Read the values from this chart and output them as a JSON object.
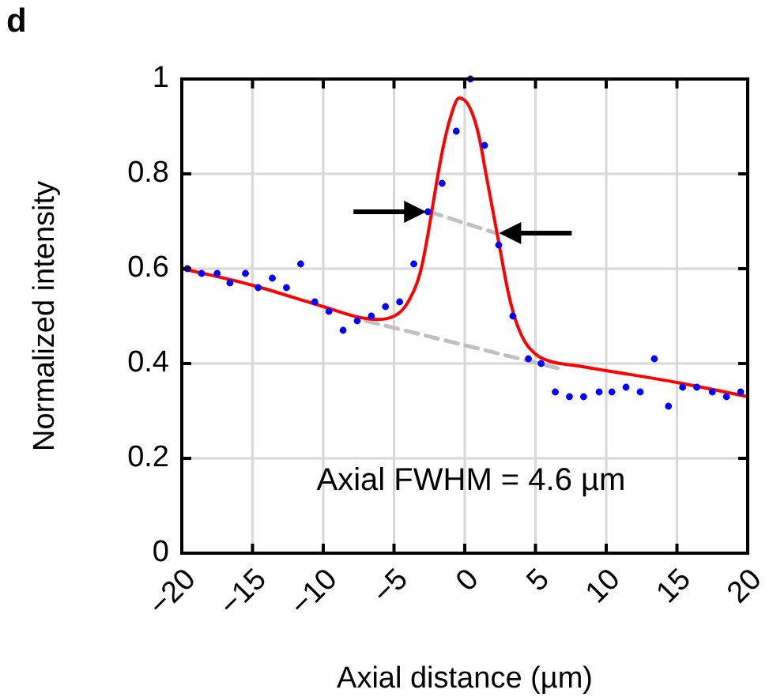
{
  "chart_data": {
    "type": "scatter",
    "title": "d",
    "xlabel": "Axial distance (µm)",
    "ylabel": "Normalized intensity",
    "xlim": [
      -20,
      20
    ],
    "ylim": [
      0,
      1
    ],
    "xticks": [
      {
        "value": -20,
        "label": "−20"
      },
      {
        "value": -15,
        "label": "−15"
      },
      {
        "value": -10,
        "label": "−10"
      },
      {
        "value": -5,
        "label": "−5"
      },
      0,
      5,
      10,
      15,
      20
    ],
    "yticks": [
      0,
      0.2,
      0.4,
      0.6,
      0.8,
      1
    ],
    "grid": true,
    "marker": "circle",
    "annotations": [
      "Axial FWHM = 4.6 µm"
    ],
    "series": [
      {
        "color": "#0000ff",
        "x": [
          -19.6,
          -18.6,
          -17.5,
          -16.6,
          -15.5,
          -14.6,
          -13.6,
          -12.6,
          -11.6,
          -10.6,
          -9.6,
          -8.6,
          -7.6,
          -6.6,
          -5.6,
          -4.6,
          -3.6,
          -2.6,
          -1.6,
          -0.6,
          0.4,
          1.4,
          2.4,
          3.4,
          4.5,
          5.4,
          6.4,
          7.4,
          8.4,
          9.5,
          10.4,
          11.4,
          12.4,
          13.4,
          14.4,
          15.4,
          16.4,
          17.5,
          18.5,
          19.5
        ],
        "values": [
          0.6,
          0.59,
          0.59,
          0.57,
          0.59,
          0.56,
          0.58,
          0.56,
          0.61,
          0.53,
          0.51,
          0.47,
          0.49,
          0.5,
          0.52,
          0.53,
          0.61,
          0.72,
          0.78,
          0.89,
          1.0,
          0.86,
          0.65,
          0.5,
          0.41,
          0.4,
          0.34,
          0.33,
          0.33,
          0.34,
          0.34,
          0.35,
          0.34,
          0.41,
          0.31,
          0.35,
          0.35,
          0.34,
          0.33,
          0.34
        ]
      },
      {
        "type": "line",
        "color": "#ff0000",
        "marker": "none",
        "x": [
          -20,
          -15,
          -10,
          -7,
          -6,
          -5,
          -4,
          -3,
          -2.5,
          -2,
          -1.5,
          -1,
          -0.4,
          0,
          0.5,
          1,
          1.5,
          2,
          2.5,
          3,
          3.5,
          4,
          5,
          6,
          8,
          10,
          15,
          20
        ],
        "values": [
          0.6,
          0.565,
          0.52,
          0.495,
          0.493,
          0.5,
          0.53,
          0.61,
          0.69,
          0.78,
          0.86,
          0.92,
          0.96,
          0.955,
          0.93,
          0.88,
          0.8,
          0.72,
          0.64,
          0.56,
          0.5,
          0.46,
          0.42,
          0.405,
          0.395,
          0.385,
          0.36,
          0.33
        ]
      },
      {
        "type": "line",
        "color": "#c0c0c0",
        "line_style": "dashed",
        "marker": "none",
        "x": [
          -2.5,
          2.2
        ],
        "values": [
          0.72,
          0.675
        ]
      },
      {
        "type": "line",
        "color": "#c0c0c0",
        "line_style": "dashed",
        "marker": "none",
        "x": [
          -7,
          6.6
        ],
        "values": [
          0.49,
          0.39
        ]
      }
    ]
  }
}
